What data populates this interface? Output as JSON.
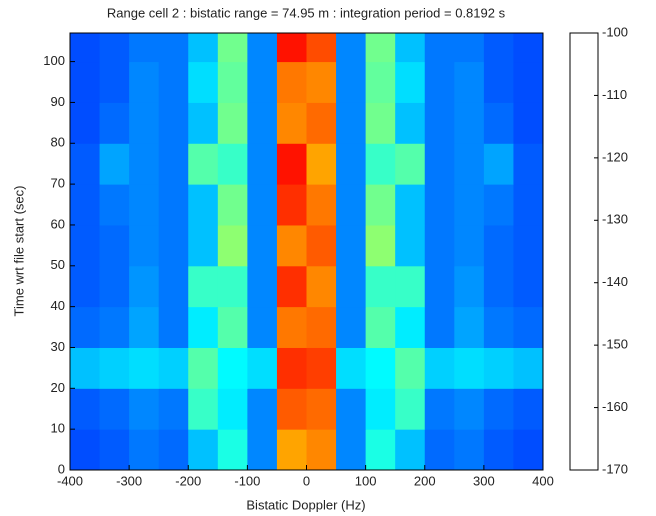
{
  "chart_data": {
    "type": "heatmap",
    "title": "Range cell 2 : bistatic range = 74.95 m : integration period = 0.8192 s",
    "x_label": "Bistatic Doppler (Hz)",
    "y_label": "Time wrt file start (sec)",
    "x_edges": [
      -400,
      -350,
      -300,
      -250,
      -200,
      -150,
      -100,
      -50,
      0,
      50,
      100,
      150,
      200,
      250,
      300,
      350,
      400
    ],
    "y_edges": [
      0,
      10,
      20,
      30,
      40,
      50,
      60,
      70,
      80,
      90,
      100,
      107
    ],
    "values": [
      [
        -156,
        -155,
        -153,
        -154,
        -148,
        -142,
        -152,
        -120,
        -118,
        -152,
        -142,
        -148,
        -154,
        -153,
        -155,
        -156
      ],
      [
        -155,
        -154,
        -152,
        -153,
        -140,
        -145,
        -152,
        -115,
        -116,
        -152,
        -145,
        -140,
        -153,
        -152,
        -154,
        -155
      ],
      [
        -148,
        -147,
        -146,
        -147,
        -138,
        -144,
        -146,
        -112,
        -113,
        -146,
        -144,
        -138,
        -147,
        -146,
        -147,
        -148
      ],
      [
        -154,
        -153,
        -150,
        -153,
        -145,
        -138,
        -152,
        -117,
        -116,
        -152,
        -138,
        -145,
        -153,
        -150,
        -153,
        -154
      ],
      [
        -155,
        -154,
        -151,
        -153,
        -140,
        -140,
        -152,
        -112,
        -118,
        -152,
        -140,
        -140,
        -153,
        -151,
        -154,
        -155
      ],
      [
        -155,
        -154,
        -152,
        -153,
        -148,
        -134,
        -152,
        -118,
        -115,
        -152,
        -134,
        -148,
        -153,
        -152,
        -154,
        -155
      ],
      [
        -155,
        -153,
        -152,
        -153,
        -148,
        -136,
        -152,
        -112,
        -117,
        -152,
        -136,
        -148,
        -153,
        -152,
        -153,
        -155
      ],
      [
        -155,
        -150,
        -152,
        -153,
        -138,
        -140,
        -152,
        -110,
        -120,
        -152,
        -140,
        -138,
        -153,
        -152,
        -150,
        -155
      ],
      [
        -156,
        -154,
        -152,
        -153,
        -148,
        -136,
        -152,
        -118,
        -116,
        -152,
        -136,
        -148,
        -153,
        -152,
        -154,
        -156
      ],
      [
        -156,
        -155,
        -152,
        -153,
        -146,
        -137,
        -152,
        -117,
        -118,
        -152,
        -137,
        -146,
        -153,
        -152,
        -155,
        -156
      ],
      [
        -156,
        -155,
        -153,
        -153,
        -148,
        -136,
        -152,
        -110,
        -114,
        -152,
        -136,
        -148,
        -153,
        -153,
        -155,
        -156
      ]
    ],
    "xlim": [
      -400,
      400
    ],
    "xticks": [
      -400,
      -300,
      -200,
      -100,
      0,
      100,
      200,
      300,
      400
    ],
    "ylim": [
      0,
      107
    ],
    "yticks": [
      0,
      10,
      20,
      30,
      40,
      50,
      60,
      70,
      80,
      90,
      100
    ],
    "colormap": "jet",
    "clim": [
      -170,
      -100
    ],
    "cticks": [
      -170,
      -160,
      -150,
      -140,
      -130,
      -120,
      -110,
      -100
    ]
  }
}
